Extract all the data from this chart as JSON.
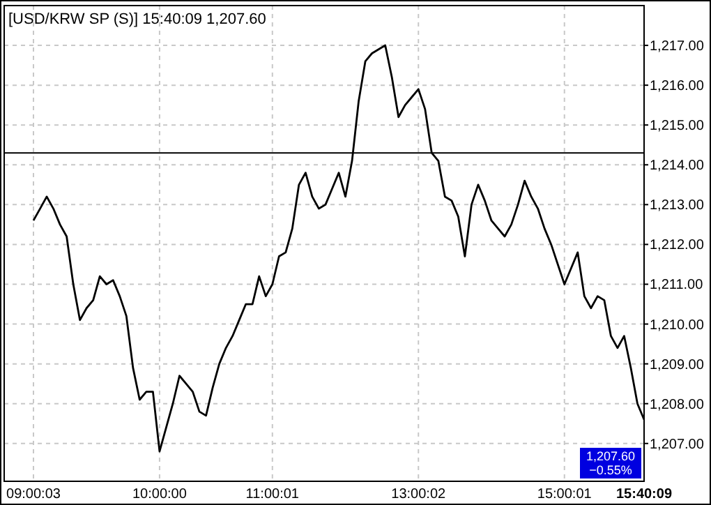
{
  "chart_data": {
    "type": "line",
    "title": "[USD/KRW SP (S)] 15:40:09  1,207.60",
    "categories": [
      "09:00:03",
      null,
      null,
      null,
      null,
      null,
      null,
      null,
      null,
      null,
      null,
      null,
      null,
      null,
      null,
      null,
      null,
      null,
      null,
      "10:00:00",
      null,
      null,
      null,
      null,
      null,
      null,
      null,
      null,
      null,
      null,
      null,
      null,
      null,
      null,
      null,
      null,
      "11:00:01",
      null,
      null,
      null,
      null,
      null,
      null,
      null,
      null,
      null,
      null,
      null,
      null,
      null,
      null,
      null,
      null,
      null,
      null,
      null,
      null,
      null,
      "13:00:02",
      null,
      null,
      null,
      null,
      null,
      null,
      null,
      null,
      null,
      null,
      null,
      null,
      null,
      null,
      null,
      null,
      null,
      null,
      null,
      null,
      null,
      "15:00:01",
      null,
      null,
      null,
      null,
      null,
      null,
      null,
      null,
      null,
      null,
      null,
      "15:40:09"
    ],
    "series": [
      {
        "color": "#000000",
        "values": [
          1212.6,
          1212.9,
          1213.2,
          1212.9,
          1212.5,
          1212.2,
          1211.0,
          1210.1,
          1210.4,
          1210.6,
          1211.2,
          1211.0,
          1211.1,
          1210.7,
          1210.2,
          1208.9,
          1208.1,
          1208.3,
          1208.3,
          1206.8,
          1207.4,
          1208.0,
          1208.7,
          1208.5,
          1208.3,
          1207.8,
          1207.7,
          1208.4,
          1209.0,
          1209.4,
          1209.7,
          1210.1,
          1210.5,
          1210.5,
          1211.2,
          1210.7,
          1211.0,
          1211.7,
          1211.8,
          1212.4,
          1213.5,
          1213.8,
          1213.2,
          1212.9,
          1213.0,
          1213.4,
          1213.8,
          1213.2,
          1214.1,
          1215.6,
          1216.6,
          1216.8,
          1216.9,
          1217.0,
          1216.2,
          1215.2,
          1215.5,
          1215.7,
          1215.9,
          1215.4,
          1214.3,
          1214.1,
          1213.2,
          1213.1,
          1212.7,
          1211.7,
          1213.0,
          1213.5,
          1213.1,
          1212.6,
          1212.4,
          1212.2,
          1212.5,
          1213.0,
          1213.6,
          1213.2,
          1212.9,
          1212.4,
          1212.0,
          1211.5,
          1211.0,
          1211.4,
          1211.8,
          1210.7,
          1210.4,
          1210.7,
          1210.6,
          1209.7,
          1209.4,
          1209.7,
          1208.9,
          1208.0,
          1207.6
        ]
      }
    ],
    "ylim": [
      1206.05,
      1218.0
    ],
    "yticks": [
      {
        "value": 1207,
        "label": "1,207.00"
      },
      {
        "value": 1208,
        "label": "1,208.00"
      },
      {
        "value": 1209,
        "label": "1,209.00"
      },
      {
        "value": 1210,
        "label": "1,210.00"
      },
      {
        "value": 1211,
        "label": "1,211.00"
      },
      {
        "value": 1212,
        "label": "1,212.00"
      },
      {
        "value": 1213,
        "label": "1,213.00"
      },
      {
        "value": 1214,
        "label": "1,214.00"
      },
      {
        "value": 1215,
        "label": "1,215.00"
      },
      {
        "value": 1216,
        "label": "1,216.00"
      },
      {
        "value": 1217,
        "label": "1,217.00"
      }
    ],
    "ref_lines": [
      {
        "axis": "y",
        "value": 1214.3,
        "color": "#000000"
      }
    ],
    "annotations": [
      "1,207.60",
      "−0.55%"
    ],
    "grid": true,
    "marker": "none",
    "line_style": "solid"
  }
}
